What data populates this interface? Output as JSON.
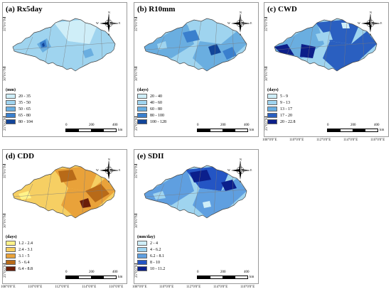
{
  "panels": [
    {
      "title": "(a) Rx5day",
      "unit": "(mm)",
      "legend": [
        "20 - 35",
        "35 - 50",
        "50 - 65",
        "65 - 80",
        "80 - 104"
      ],
      "colors": [
        "#cfeef8",
        "#9fd4ef",
        "#6aaee0",
        "#3a7fcd",
        "#12459a"
      ],
      "show_y": true,
      "show_x": false
    },
    {
      "title": "(b) R10mm",
      "unit": "(days)",
      "legend": [
        "20 - 40",
        "40 - 60",
        "60 - 80",
        "80 - 100",
        "100 - 128"
      ],
      "colors": [
        "#cfeef8",
        "#9fd4ef",
        "#6aaee0",
        "#3a7fcd",
        "#12459a"
      ],
      "show_y": true,
      "show_x": false
    },
    {
      "title": "(c) CWD",
      "unit": "(days)",
      "legend": [
        "5 - 9",
        "9 - 13",
        "13 - 17",
        "17 - 20",
        "20 - 22.8"
      ],
      "colors": [
        "#cfeef8",
        "#9fd4ef",
        "#6aaee0",
        "#2a5fc0",
        "#0d1f8a"
      ],
      "show_y": true,
      "show_x": true
    },
    {
      "title": "(d) CDD",
      "unit": "(days)",
      "legend": [
        "1.2 - 2.4",
        "2.4 - 3.1",
        "3.1 - 5",
        "5 - 6.4",
        "6.4 - 8.8"
      ],
      "colors": [
        "#fff38a",
        "#f6cf63",
        "#e9a23a",
        "#b86a18",
        "#6a1e0a"
      ],
      "show_y": true,
      "show_x": true
    },
    {
      "title": "(e) SDII",
      "unit": "(mm/day)",
      "legend": [
        "2 - 4",
        "4 - 6.2",
        "6.2 - 8.1",
        "8 - 10",
        "10 - 11.2"
      ],
      "colors": [
        "#cfeef8",
        "#9fd4ef",
        "#5f9fe0",
        "#2455c4",
        "#0b1f8c"
      ],
      "show_y": true,
      "show_x": true
    }
  ],
  "axes": {
    "y_ticks": [
      "35°0'0\"N",
      "30°0'0\"N",
      "25°0'0\"N"
    ],
    "x_ticks": [
      "108°0'0\"E",
      "110°0'0\"E",
      "112°0'0\"E",
      "114°0'0\"E",
      "116°0'0\"E"
    ]
  },
  "scale": {
    "labels": [
      "0",
      "200",
      "400"
    ],
    "unit": "km"
  },
  "compass": {
    "n": "N",
    "s": "S",
    "e": "E",
    "w": "W"
  }
}
